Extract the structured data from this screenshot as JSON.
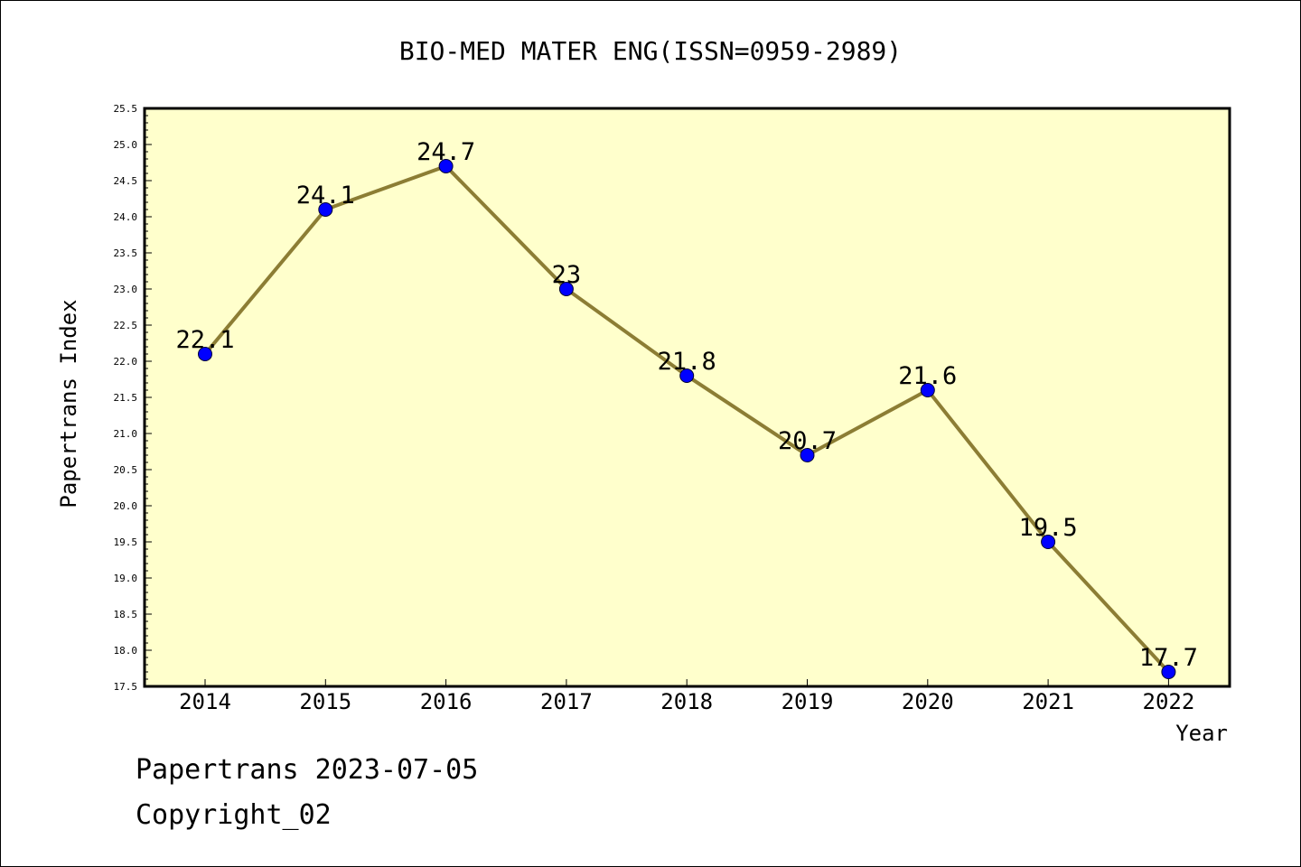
{
  "chart_data": {
    "type": "line",
    "title": "BIO-MED MATER ENG(ISSN=0959-2989)",
    "xlabel": "Year",
    "ylabel": "Papertrans Index",
    "categories": [
      "2014",
      "2015",
      "2016",
      "2017",
      "2018",
      "2019",
      "2020",
      "2021",
      "2022"
    ],
    "series": [
      {
        "values": [
          22.1,
          24.1,
          24.7,
          23,
          21.8,
          20.7,
          21.6,
          19.5,
          17.7
        ],
        "data_labels": [
          "22.1",
          "24.1",
          "24.7",
          "23",
          "21.8",
          "20.7",
          "21.6",
          "19.5",
          "17.7"
        ]
      }
    ],
    "ylim": [
      17.5,
      25.5
    ],
    "yticks": [
      "17.5",
      "18.0",
      "18.5",
      "19.0",
      "19.5",
      "20.0",
      "20.5",
      "21.0",
      "21.5",
      "22.0",
      "22.5",
      "23.0",
      "23.5",
      "24.0",
      "24.5",
      "25.0",
      "25.5"
    ],
    "grid": false,
    "legend": "none"
  },
  "colors": {
    "plot_background": "#ffffcc",
    "line": "#8c7d34",
    "marker": "#0000ff",
    "axis": "#000000"
  },
  "footer": {
    "date_text": "Papertrans 2023-07-05",
    "copyright_text": "Copyright_02"
  }
}
